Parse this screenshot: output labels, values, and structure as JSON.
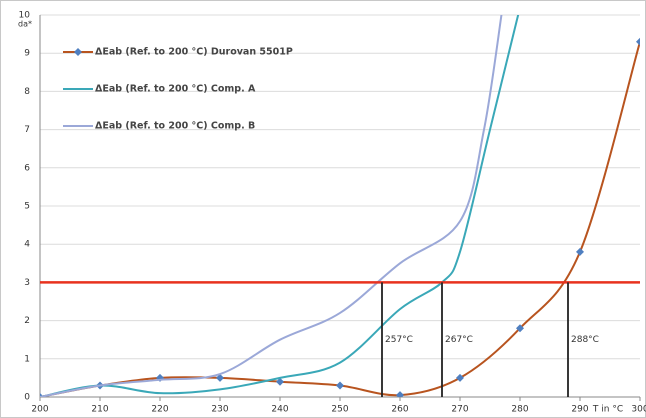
{
  "chart_data": {
    "type": "line",
    "x_label": "T in °C",
    "y_label": "da*",
    "xlim": [
      200,
      300
    ],
    "xticks": [
      200,
      210,
      220,
      230,
      240,
      250,
      260,
      270,
      280,
      290,
      300
    ],
    "ylim": [
      0,
      10
    ],
    "yticks": [
      0,
      1,
      2,
      3,
      4,
      5,
      6,
      7,
      8,
      9,
      10
    ],
    "grid": true,
    "legend": "top-left",
    "threshold": {
      "value": 3,
      "color": "#e8321e"
    },
    "annotations": [
      {
        "text": "257°C",
        "x": 257
      },
      {
        "text": "267°C",
        "x": 267
      },
      {
        "text": "288°C",
        "x": 288
      }
    ],
    "series": [
      {
        "name": "ΔEab (Ref. to 200 °C) Durovan 5501P",
        "color": "#b8541f",
        "marker": "diamond",
        "marker_color": "#4f7fc0",
        "x": [
          200,
          210,
          220,
          230,
          240,
          250,
          260,
          270,
          280,
          290,
          300
        ],
        "values": [
          0,
          0.3,
          0.5,
          0.5,
          0.4,
          0.3,
          0.05,
          0.5,
          1.8,
          3.8,
          9.3
        ]
      },
      {
        "name": "ΔEab (Ref. to 200 °C) Comp. A",
        "color": "#3aa8b8",
        "x": [
          200,
          210,
          220,
          230,
          240,
          250,
          260,
          267,
          270,
          275,
          280
        ],
        "values": [
          0,
          0.3,
          0.1,
          0.2,
          0.5,
          0.9,
          2.3,
          3,
          3.8,
          7,
          10.2
        ]
      },
      {
        "name": "ΔEab (Ref. to 200 °C) Comp. B",
        "color": "#9ba8d8",
        "x": [
          200,
          210,
          220,
          230,
          240,
          250,
          260,
          270,
          274,
          277
        ],
        "values": [
          0,
          0.3,
          0.45,
          0.6,
          1.5,
          2.2,
          3.5,
          4.6,
          7,
          10.1
        ]
      }
    ]
  }
}
